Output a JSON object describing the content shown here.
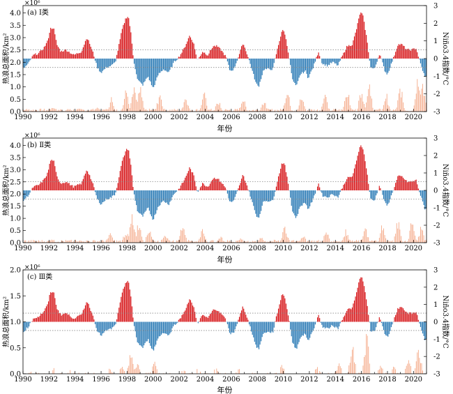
{
  "figure": {
    "xlabel": "年份",
    "ylabel_left": "热浪总面积/km²",
    "ylabel_right": "Niño3.4指数/°C",
    "x_ticks": [
      "1990",
      "1992",
      "1994",
      "1996",
      "1998",
      "2000",
      "2002",
      "2004",
      "2006",
      "2008",
      "2010",
      "2012",
      "2014",
      "2016",
      "2018",
      "2020"
    ]
  },
  "colors": {
    "positive": "#d7191c",
    "negative": "#2c7bb6",
    "heatwave": "#f4a582",
    "dotted": "#888888"
  },
  "chart_data": [
    {
      "type": "bar",
      "panel_label": "(a) Ⅰ类",
      "exponent": "×10⁶",
      "xlim": [
        1990,
        2021
      ],
      "left_ylim": [
        0,
        4.3
      ],
      "left_ticks": [
        "0.0",
        "0.5",
        "1.0",
        "1.5",
        "2.0",
        "2.5",
        "3.0",
        "3.5",
        "4.0"
      ],
      "right_ylim": [
        -3,
        3
      ],
      "right_ticks": [
        "-3",
        "-2",
        "-1",
        "0",
        "1",
        "2",
        "3"
      ],
      "enso_thresholds": [
        0.5,
        -0.5
      ],
      "area_peaks": [
        {
          "x": 1990.2,
          "v": 0.12
        },
        {
          "x": 1992.3,
          "v": 0.25
        },
        {
          "x": 1993.5,
          "v": 0.12
        },
        {
          "x": 1995.7,
          "v": 0.22
        },
        {
          "x": 1996.8,
          "v": 0.65
        },
        {
          "x": 1997.9,
          "v": 1.05
        },
        {
          "x": 1998.5,
          "v": 1.55
        },
        {
          "x": 1999.0,
          "v": 1.2
        },
        {
          "x": 2000.5,
          "v": 0.9
        },
        {
          "x": 2002.5,
          "v": 0.8
        },
        {
          "x": 2003.9,
          "v": 0.95
        },
        {
          "x": 2005.0,
          "v": 0.55
        },
        {
          "x": 2006.9,
          "v": 0.7
        },
        {
          "x": 2008.5,
          "v": 0.55
        },
        {
          "x": 2010.3,
          "v": 1.1
        },
        {
          "x": 2011.4,
          "v": 0.75
        },
        {
          "x": 2013.2,
          "v": 0.9
        },
        {
          "x": 2014.9,
          "v": 1.15
        },
        {
          "x": 2016.0,
          "v": 1.25
        },
        {
          "x": 2016.6,
          "v": 1.4
        },
        {
          "x": 2017.9,
          "v": 0.9
        },
        {
          "x": 2019.0,
          "v": 1.25
        },
        {
          "x": 2020.3,
          "v": 1.7
        },
        {
          "x": 2020.7,
          "v": 1.55
        }
      ]
    },
    {
      "type": "bar",
      "panel_label": "(b) Ⅱ类",
      "exponent": "×10⁶",
      "xlim": [
        1990,
        2021
      ],
      "left_ylim": [
        0,
        4.3
      ],
      "left_ticks": [
        "0.0",
        "0.5",
        "1.0",
        "1.5",
        "2.0",
        "2.5",
        "3.0",
        "3.5",
        "4.0"
      ],
      "right_ylim": [
        -3,
        3
      ],
      "right_ticks": [
        "-3",
        "-2",
        "-1",
        "0",
        "1",
        "2",
        "3"
      ],
      "enso_thresholds": [
        0.5,
        -0.5
      ],
      "area_peaks": [
        {
          "x": 1992.2,
          "v": 0.2
        },
        {
          "x": 1994.5,
          "v": 0.12
        },
        {
          "x": 1996.7,
          "v": 0.45
        },
        {
          "x": 1997.9,
          "v": 0.6
        },
        {
          "x": 1998.4,
          "v": 1.45
        },
        {
          "x": 1998.9,
          "v": 1.1
        },
        {
          "x": 1999.7,
          "v": 0.8
        },
        {
          "x": 2000.9,
          "v": 0.5
        },
        {
          "x": 2002.3,
          "v": 1.15
        },
        {
          "x": 2003.8,
          "v": 0.7
        },
        {
          "x": 2005.2,
          "v": 0.3
        },
        {
          "x": 2006.7,
          "v": 0.25
        },
        {
          "x": 2008.3,
          "v": 0.3
        },
        {
          "x": 2010.1,
          "v": 0.95
        },
        {
          "x": 2011.5,
          "v": 0.4
        },
        {
          "x": 2013.3,
          "v": 0.6
        },
        {
          "x": 2014.8,
          "v": 0.65
        },
        {
          "x": 2016.3,
          "v": 0.75
        },
        {
          "x": 2017.6,
          "v": 0.95
        },
        {
          "x": 2018.8,
          "v": 1.1
        },
        {
          "x": 2019.9,
          "v": 1.2
        },
        {
          "x": 2020.6,
          "v": 0.85
        }
      ]
    },
    {
      "type": "bar",
      "panel_label": "(c) Ⅲ类",
      "exponent": "×10⁶",
      "xlim": [
        1990,
        2021
      ],
      "left_ylim": [
        0,
        2.0
      ],
      "left_ticks": [
        "0.0",
        "0.5",
        "1.0",
        "1.5",
        "2.0"
      ],
      "right_ylim": [
        -3,
        3
      ],
      "right_ticks": [
        "-3",
        "-2",
        "-1",
        "0",
        "1",
        "2",
        "3"
      ],
      "enso_thresholds": [
        0.5,
        -0.5
      ],
      "area_peaks": [
        {
          "x": 1990.8,
          "v": 0.1
        },
        {
          "x": 1992.4,
          "v": 0.12
        },
        {
          "x": 1993.7,
          "v": 0.1
        },
        {
          "x": 1996.6,
          "v": 0.15
        },
        {
          "x": 1997.6,
          "v": 0.2
        },
        {
          "x": 1998.3,
          "v": 0.5
        },
        {
          "x": 1998.8,
          "v": 0.25
        },
        {
          "x": 2000.1,
          "v": 0.3
        },
        {
          "x": 2002.3,
          "v": 0.1
        },
        {
          "x": 2003.4,
          "v": 0.12
        },
        {
          "x": 2004.8,
          "v": 0.13
        },
        {
          "x": 2006.6,
          "v": 0.1
        },
        {
          "x": 2009.9,
          "v": 0.2
        },
        {
          "x": 2011.2,
          "v": 0.1
        },
        {
          "x": 2012.6,
          "v": 0.15
        },
        {
          "x": 2014.3,
          "v": 0.25
        },
        {
          "x": 2015.3,
          "v": 0.75
        },
        {
          "x": 2016.4,
          "v": 0.95
        },
        {
          "x": 2017.5,
          "v": 0.2
        },
        {
          "x": 2018.5,
          "v": 0.18
        },
        {
          "x": 2019.6,
          "v": 0.4
        },
        {
          "x": 2020.4,
          "v": 0.65
        }
      ]
    }
  ],
  "nino34": {
    "note": "shared Niño3.4 index series used by all three panels",
    "points": [
      {
        "x": 1990.0,
        "v": -0.6
      },
      {
        "x": 1990.4,
        "v": -0.3
      },
      {
        "x": 1990.8,
        "v": 0.2
      },
      {
        "x": 1991.2,
        "v": 0.3
      },
      {
        "x": 1991.6,
        "v": 0.6
      },
      {
        "x": 1991.9,
        "v": 1.0
      },
      {
        "x": 1992.1,
        "v": 1.7
      },
      {
        "x": 1992.35,
        "v": 1.75
      },
      {
        "x": 1992.6,
        "v": 0.8
      },
      {
        "x": 1992.9,
        "v": 0.4
      },
      {
        "x": 1993.3,
        "v": 0.5
      },
      {
        "x": 1993.6,
        "v": 0.35
      },
      {
        "x": 1993.9,
        "v": 0.2
      },
      {
        "x": 1994.2,
        "v": 0.3
      },
      {
        "x": 1994.5,
        "v": 0.4
      },
      {
        "x": 1994.9,
        "v": 1.2
      },
      {
        "x": 1995.1,
        "v": 0.9
      },
      {
        "x": 1995.4,
        "v": 0.3
      },
      {
        "x": 1995.7,
        "v": -0.5
      },
      {
        "x": 1996.0,
        "v": -0.8
      },
      {
        "x": 1996.4,
        "v": -0.5
      },
      {
        "x": 1996.8,
        "v": -0.4
      },
      {
        "x": 1997.1,
        "v": -0.2
      },
      {
        "x": 1997.3,
        "v": 0.5
      },
      {
        "x": 1997.6,
        "v": 1.6
      },
      {
        "x": 1997.9,
        "v": 2.3
      },
      {
        "x": 1998.1,
        "v": 2.4
      },
      {
        "x": 1998.3,
        "v": 1.4
      },
      {
        "x": 1998.5,
        "v": -0.1
      },
      {
        "x": 1998.8,
        "v": -1.2
      },
      {
        "x": 1999.2,
        "v": -1.5
      },
      {
        "x": 1999.6,
        "v": -1.0
      },
      {
        "x": 2000.0,
        "v": -1.7
      },
      {
        "x": 2000.4,
        "v": -0.9
      },
      {
        "x": 2000.8,
        "v": -0.6
      },
      {
        "x": 2001.2,
        "v": -0.8
      },
      {
        "x": 2001.6,
        "v": -0.2
      },
      {
        "x": 2002.0,
        "v": 0.1
      },
      {
        "x": 2002.4,
        "v": 0.6
      },
      {
        "x": 2002.8,
        "v": 1.3
      },
      {
        "x": 2003.1,
        "v": 0.9
      },
      {
        "x": 2003.4,
        "v": -0.1
      },
      {
        "x": 2003.8,
        "v": 0.4
      },
      {
        "x": 2004.2,
        "v": 0.2
      },
      {
        "x": 2004.6,
        "v": 0.7
      },
      {
        "x": 2004.9,
        "v": 0.7
      },
      {
        "x": 2005.2,
        "v": 0.5
      },
      {
        "x": 2005.6,
        "v": 0.1
      },
      {
        "x": 2005.9,
        "v": -0.7
      },
      {
        "x": 2006.2,
        "v": -0.6
      },
      {
        "x": 2006.6,
        "v": 0.2
      },
      {
        "x": 2006.9,
        "v": 0.9
      },
      {
        "x": 2007.2,
        "v": 0.3
      },
      {
        "x": 2007.5,
        "v": -0.4
      },
      {
        "x": 2007.9,
        "v": -1.4
      },
      {
        "x": 2008.1,
        "v": -1.6
      },
      {
        "x": 2008.5,
        "v": -0.6
      },
      {
        "x": 2008.9,
        "v": -0.6
      },
      {
        "x": 2009.2,
        "v": -0.6
      },
      {
        "x": 2009.5,
        "v": 0.4
      },
      {
        "x": 2009.9,
        "v": 1.6
      },
      {
        "x": 2010.1,
        "v": 1.5
      },
      {
        "x": 2010.4,
        "v": 0.3
      },
      {
        "x": 2010.7,
        "v": -1.2
      },
      {
        "x": 2011.0,
        "v": -1.6
      },
      {
        "x": 2011.3,
        "v": -0.9
      },
      {
        "x": 2011.7,
        "v": -0.7
      },
      {
        "x": 2011.9,
        "v": -1.1
      },
      {
        "x": 2012.3,
        "v": -0.5
      },
      {
        "x": 2012.7,
        "v": 0.4
      },
      {
        "x": 2013.0,
        "v": -0.3
      },
      {
        "x": 2013.4,
        "v": -0.4
      },
      {
        "x": 2013.8,
        "v": -0.2
      },
      {
        "x": 2014.2,
        "v": -0.4
      },
      {
        "x": 2014.5,
        "v": 0.1
      },
      {
        "x": 2014.9,
        "v": 0.7
      },
      {
        "x": 2015.3,
        "v": 0.8
      },
      {
        "x": 2015.6,
        "v": 1.6
      },
      {
        "x": 2015.9,
        "v": 2.6
      },
      {
        "x": 2016.1,
        "v": 2.5
      },
      {
        "x": 2016.4,
        "v": 1.2
      },
      {
        "x": 2016.7,
        "v": -0.5
      },
      {
        "x": 2017.0,
        "v": -0.6
      },
      {
        "x": 2017.4,
        "v": 0.3
      },
      {
        "x": 2017.8,
        "v": -0.7
      },
      {
        "x": 2018.0,
        "v": -0.9
      },
      {
        "x": 2018.4,
        "v": -0.1
      },
      {
        "x": 2018.8,
        "v": 0.8
      },
      {
        "x": 2019.1,
        "v": 0.8
      },
      {
        "x": 2019.5,
        "v": 0.5
      },
      {
        "x": 2019.9,
        "v": 0.5
      },
      {
        "x": 2020.2,
        "v": 0.6
      },
      {
        "x": 2020.5,
        "v": -0.2
      },
      {
        "x": 2020.9,
        "v": -1.1
      },
      {
        "x": 2021.0,
        "v": -1.0
      }
    ]
  }
}
